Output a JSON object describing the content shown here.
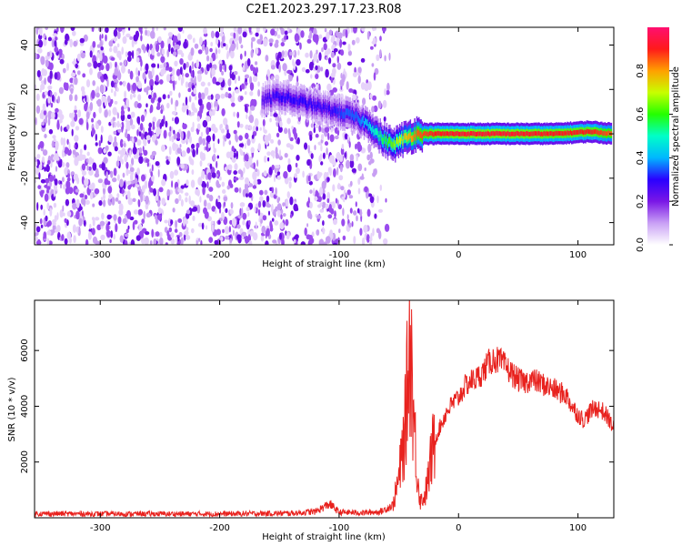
{
  "title": "C2E1.2023.297.17.23.R08",
  "chart_data": [
    {
      "type": "heatmap",
      "xlabel": "Height of straight line (km)",
      "ylabel": "Frequency (Hz)",
      "xlim": [
        -355,
        130
      ],
      "ylim": [
        -50,
        48
      ],
      "xticks": [
        -300,
        -200,
        -100,
        0,
        100
      ],
      "yticks": [
        -40,
        -20,
        0,
        20,
        40
      ],
      "colorbar": {
        "label": "Normalized spectral amplitude",
        "range": [
          0,
          1
        ],
        "ticks": [
          "0.0",
          "0.2",
          "0.4",
          "0.6",
          "0.8"
        ],
        "palette": [
          "#ffffff",
          "#c9a0f5",
          "#7a16e6",
          "#2a00ff",
          "#00b7ff",
          "#00ffc8",
          "#24ff00",
          "#c8ff00",
          "#ffa000",
          "#ff1a1a",
          "#ff0f70"
        ]
      },
      "features": {
        "noise_region_x": [
          -355,
          -75
        ],
        "noise_gap_x": [
          -133,
          -127
        ],
        "signal_track": {
          "x": [
            -165,
            -150,
            -130,
            -110,
            -95,
            -85,
            -75,
            -65,
            -55,
            -45,
            -35,
            -20,
            0,
            40,
            80,
            110,
            128
          ],
          "y": [
            15,
            17,
            14,
            11,
            9,
            7,
            4,
            -2,
            -5,
            -2,
            0,
            0,
            0,
            0,
            0,
            1,
            0
          ],
          "peak": [
            0.25,
            0.3,
            0.3,
            0.28,
            0.35,
            0.35,
            0.45,
            0.55,
            0.65,
            0.75,
            0.85,
            0.9,
            0.92,
            0.92,
            0.9,
            0.9,
            0.85
          ]
        }
      }
    },
    {
      "type": "line",
      "xlabel": "Height of straight line (km)",
      "ylabel": "SNR (10 * v/v)",
      "xlim": [
        -355,
        130
      ],
      "ylim": [
        0,
        7800
      ],
      "xticks": [
        -300,
        -200,
        -100,
        0,
        100
      ],
      "yticks": [
        2000,
        4000,
        6000
      ],
      "color": "#e8221e",
      "series": [
        {
          "x": [
            -355,
            -300,
            -200,
            -140,
            -120,
            -108,
            -100,
            -80,
            -65,
            -55,
            -50,
            -45,
            -42,
            -40,
            -38,
            -35,
            -32,
            -28,
            -25,
            -22,
            -18,
            -15,
            -10,
            -5,
            0,
            5,
            10,
            15,
            20,
            25,
            30,
            35,
            40,
            45,
            50,
            55,
            60,
            65,
            70,
            80,
            90,
            95,
            100,
            105,
            110,
            115,
            120,
            125,
            130
          ],
          "y": [
            150,
            140,
            140,
            160,
            220,
            500,
            200,
            180,
            220,
            450,
            1400,
            3100,
            5500,
            6500,
            4000,
            1800,
            600,
            800,
            1500,
            2400,
            3000,
            3300,
            3800,
            4100,
            4300,
            4700,
            4900,
            5000,
            5200,
            5550,
            5700,
            5600,
            5400,
            5150,
            4950,
            4850,
            4950,
            4900,
            4800,
            4600,
            4400,
            4000,
            3700,
            3500,
            3800,
            3950,
            3850,
            3600,
            3200
          ]
        }
      ]
    }
  ]
}
